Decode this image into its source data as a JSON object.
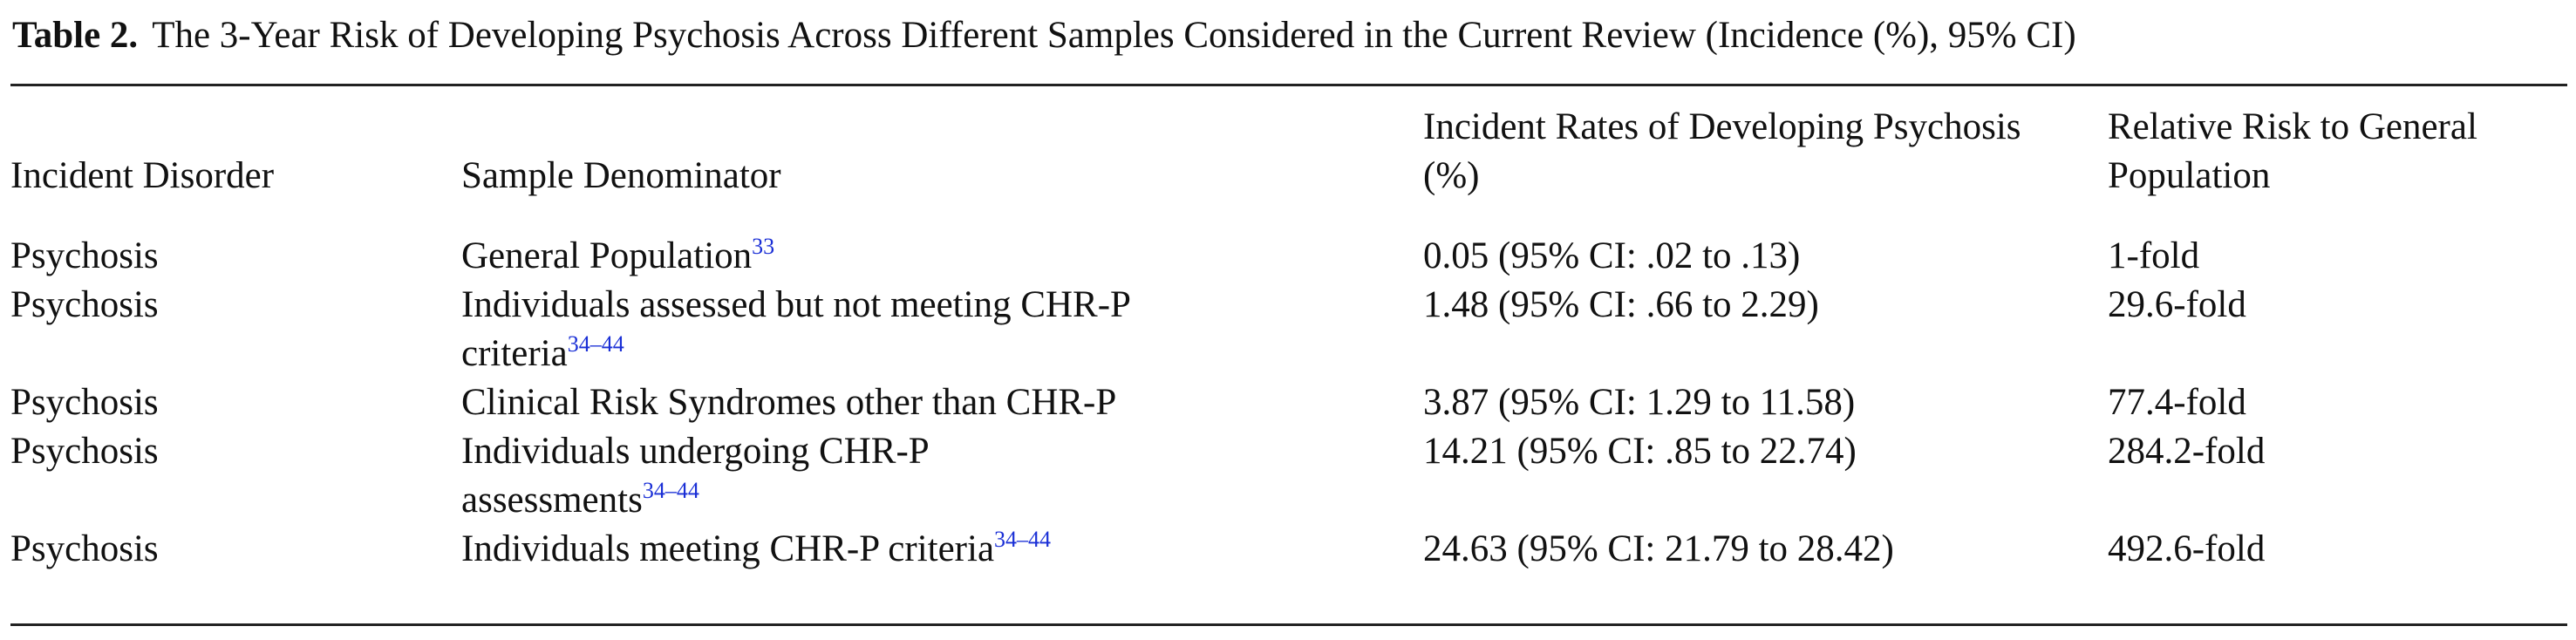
{
  "caption": {
    "label": "Table 2.",
    "title": "The 3-Year Risk of Developing Psychosis Across Different Samples Considered in the Current Review (Incidence (%), 95% CI)"
  },
  "columns": [
    "Incident Disorder",
    "Sample Denominator",
    "Incident Rates of Developing Psychosis (%)",
    "Relative Risk to General Population"
  ],
  "rows": [
    {
      "disorder": "Psychosis",
      "denominator": "General Population",
      "ref": "33",
      "incidence": "0.05 (95% CI: .02 to .13)",
      "relative_risk": "1-fold"
    },
    {
      "disorder": "Psychosis",
      "denominator": "Individuals assessed but not meeting CHR-P criteria",
      "ref": "34–44",
      "incidence": "1.48 (95% CI: .66 to 2.29)",
      "relative_risk": "29.6-fold"
    },
    {
      "disorder": "Psychosis",
      "denominator": "Clinical Risk Syndromes other than CHR-P",
      "ref": "",
      "incidence": "3.87 (95% CI: 1.29 to 11.58)",
      "relative_risk": "77.4-fold"
    },
    {
      "disorder": "Psychosis",
      "denominator": "Individuals undergoing CHR-P assessments",
      "ref": "34–44",
      "incidence": "14.21 (95% CI: .85 to 22.74)",
      "relative_risk": "284.2-fold"
    },
    {
      "disorder": "Psychosis",
      "denominator": "Individuals meeting CHR-P criteria",
      "ref": "34–44",
      "incidence": "24.63 (95% CI: 21.79 to 28.42)",
      "relative_risk": "492.6-fold"
    }
  ]
}
